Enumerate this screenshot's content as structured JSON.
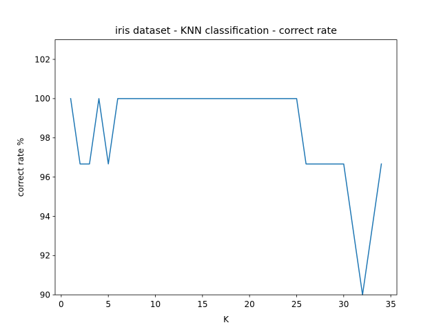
{
  "chart_data": {
    "type": "line",
    "title": "iris dataset - KNN classification - correct rate",
    "xlabel": "K",
    "ylabel": "correct rate %",
    "xlim": [
      -0.65,
      35.65
    ],
    "ylim": [
      90,
      103
    ],
    "xticks": [
      0,
      5,
      10,
      15,
      20,
      25,
      30,
      35
    ],
    "yticks": [
      90,
      92,
      94,
      96,
      98,
      100,
      102
    ],
    "grid": false,
    "line_color": "#1f77b4",
    "series": [
      {
        "x": [
          1,
          2,
          3,
          4,
          5,
          6,
          7,
          8,
          9,
          10,
          11,
          12,
          13,
          14,
          15,
          16,
          17,
          18,
          19,
          20,
          21,
          22,
          23,
          24,
          25,
          26,
          27,
          28,
          29,
          30,
          31,
          32,
          33,
          34
        ],
        "y": [
          100,
          96.67,
          96.67,
          100,
          96.67,
          100,
          100,
          100,
          100,
          100,
          100,
          100,
          100,
          100,
          100,
          100,
          100,
          100,
          100,
          100,
          100,
          100,
          100,
          100,
          100,
          96.67,
          96.67,
          96.67,
          96.67,
          96.67,
          93.33,
          90,
          93.33,
          96.67
        ]
      }
    ]
  }
}
